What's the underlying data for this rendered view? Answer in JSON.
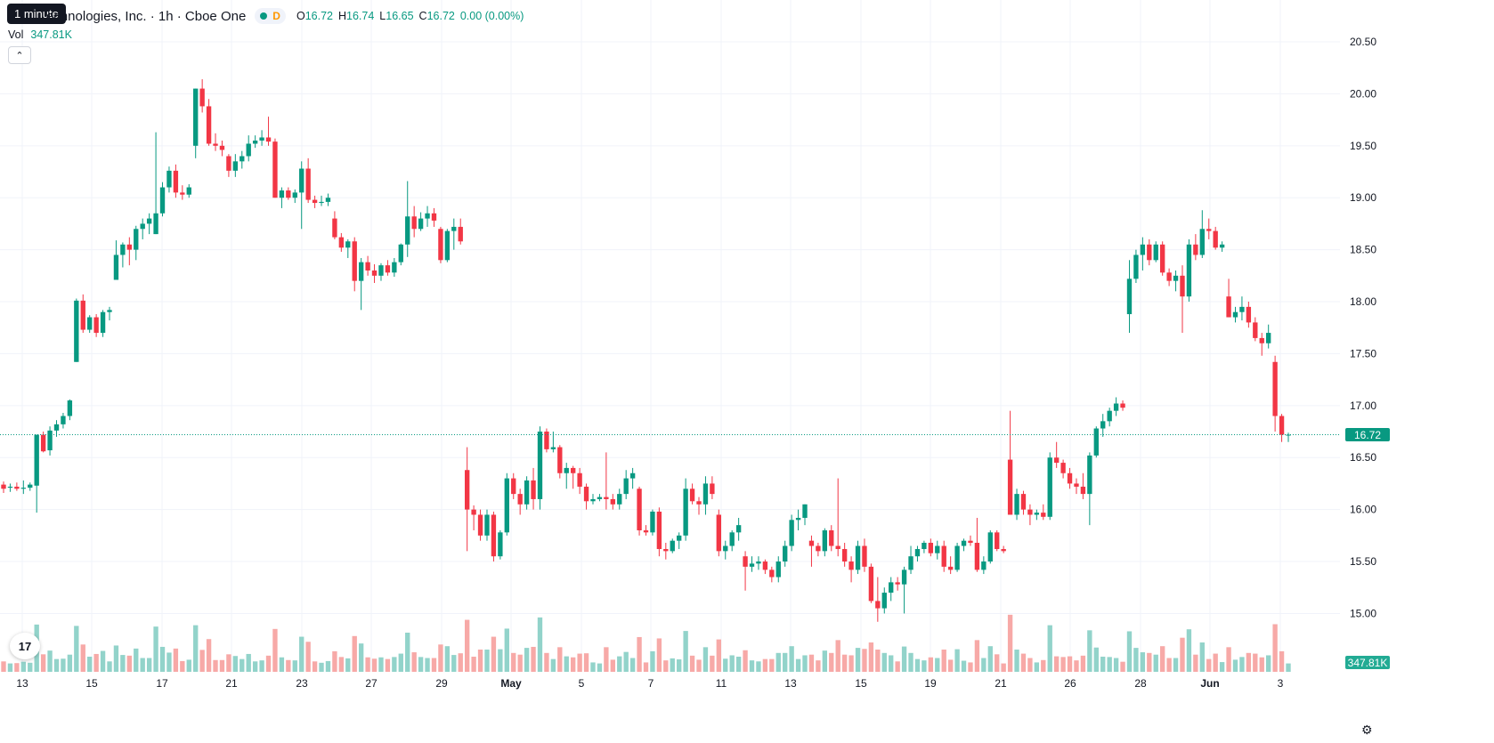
{
  "header": {
    "tooltip": "1 minute",
    "title": "echnologies, Inc. · 1h · Cboe One",
    "status_badge": "D",
    "ohlc": {
      "o_label": "O",
      "o": "16.72",
      "h_label": "H",
      "h": "16.74",
      "l_label": "L",
      "l": "16.65",
      "c_label": "C",
      "c": "16.72",
      "change": "0.00 (0.00%)"
    },
    "vol_label": "Vol",
    "vol_value": "347.81K",
    "collapse_icon": "chevron-up-icon"
  },
  "footer": {
    "logo_text": "17",
    "settings_icon": "gear-icon"
  },
  "badges": {
    "last_price": "16.72",
    "volume": "347.81K"
  },
  "colors": {
    "up": "#089981",
    "down": "#f23645",
    "vol_up": "#92d3ca",
    "vol_down": "#f7a9a7",
    "grid": "#f0f3fa"
  },
  "chart_data": {
    "type": "candlestick",
    "title": "",
    "y_axis": {
      "ticks": [
        "20.50",
        "20.00",
        "19.50",
        "19.00",
        "18.50",
        "18.00",
        "17.50",
        "17.00",
        "16.50",
        "16.00",
        "15.50",
        "15.00"
      ],
      "range": [
        14.55,
        20.62
      ],
      "position": "right"
    },
    "x_axis": {
      "ticks": [
        "13",
        "15",
        "17",
        "21",
        "23",
        "27",
        "29",
        "May",
        "5",
        "7",
        "11",
        "13",
        "15",
        "19",
        "21",
        "26",
        "28",
        "Jun",
        "3"
      ]
    },
    "last_price": 16.72,
    "last_volume": "347.81K",
    "grid": true,
    "ohlc_series": [
      [
        16.24,
        16.27,
        16.16,
        16.2
      ],
      [
        16.21,
        16.25,
        16.17,
        16.22
      ],
      [
        16.22,
        16.26,
        16.18,
        16.2
      ],
      [
        16.2,
        16.28,
        16.15,
        16.21
      ],
      [
        16.21,
        16.26,
        16.18,
        16.24
      ],
      [
        16.23,
        16.72,
        15.97,
        16.72
      ],
      [
        16.72,
        16.75,
        16.55,
        16.56
      ],
      [
        16.57,
        16.8,
        16.52,
        16.76
      ],
      [
        16.76,
        16.86,
        16.7,
        16.82
      ],
      [
        16.82,
        16.93,
        16.78,
        16.9
      ],
      [
        16.9,
        17.06,
        16.86,
        17.05
      ],
      [
        17.42,
        18.03,
        17.42,
        18.01
      ],
      [
        18.01,
        18.07,
        17.7,
        17.73
      ],
      [
        17.73,
        17.87,
        17.7,
        17.85
      ],
      [
        17.85,
        17.88,
        17.66,
        17.7
      ],
      [
        17.7,
        17.92,
        17.66,
        17.9
      ],
      [
        17.9,
        17.95,
        17.82,
        17.92
      ],
      [
        18.21,
        18.59,
        18.21,
        18.45
      ],
      [
        18.45,
        18.57,
        18.33,
        18.55
      ],
      [
        18.55,
        18.62,
        18.35,
        18.5
      ],
      [
        18.5,
        18.73,
        18.4,
        18.7
      ],
      [
        18.7,
        18.8,
        18.6,
        18.75
      ],
      [
        18.75,
        18.85,
        18.65,
        18.8
      ],
      [
        18.65,
        19.63,
        18.65,
        18.85
      ],
      [
        18.85,
        19.15,
        18.82,
        19.1
      ],
      [
        19.1,
        19.3,
        19.05,
        19.26
      ],
      [
        19.26,
        19.32,
        19.0,
        19.05
      ],
      [
        19.05,
        19.12,
        18.98,
        19.03
      ],
      [
        19.03,
        19.13,
        19.0,
        19.1
      ],
      [
        19.5,
        20.05,
        19.38,
        20.05
      ],
      [
        20.05,
        20.14,
        19.82,
        19.88
      ],
      [
        19.88,
        19.95,
        19.5,
        19.52
      ],
      [
        19.52,
        19.62,
        19.45,
        19.5
      ],
      [
        19.5,
        19.55,
        19.4,
        19.46
      ],
      [
        19.4,
        19.42,
        19.2,
        19.26
      ],
      [
        19.26,
        19.42,
        19.2,
        19.35
      ],
      [
        19.35,
        19.45,
        19.28,
        19.4
      ],
      [
        19.4,
        19.6,
        19.35,
        19.52
      ],
      [
        19.52,
        19.6,
        19.48,
        19.55
      ],
      [
        19.55,
        19.65,
        19.5,
        19.58
      ],
      [
        19.58,
        19.78,
        19.5,
        19.54
      ],
      [
        19.54,
        19.57,
        19.0,
        19.0
      ],
      [
        19.0,
        19.1,
        18.9,
        19.07
      ],
      [
        19.07,
        19.1,
        18.98,
        19.0
      ],
      [
        19.0,
        19.08,
        18.95,
        19.05
      ],
      [
        19.05,
        19.35,
        18.7,
        19.28
      ],
      [
        19.28,
        19.38,
        18.95,
        18.98
      ],
      [
        18.98,
        19.02,
        18.9,
        18.95
      ],
      [
        18.95,
        19.02,
        18.92,
        18.96
      ],
      [
        18.96,
        19.04,
        18.92,
        19.0
      ],
      [
        18.8,
        18.87,
        18.6,
        18.62
      ],
      [
        18.62,
        18.66,
        18.48,
        18.52
      ],
      [
        18.52,
        18.6,
        18.42,
        18.58
      ],
      [
        18.58,
        18.62,
        18.1,
        18.2
      ],
      [
        18.2,
        18.42,
        17.92,
        18.38
      ],
      [
        18.38,
        18.44,
        18.25,
        18.3
      ],
      [
        18.3,
        18.36,
        18.18,
        18.25
      ],
      [
        18.25,
        18.37,
        18.2,
        18.35
      ],
      [
        18.35,
        18.4,
        18.25,
        18.28
      ],
      [
        18.28,
        18.42,
        18.24,
        18.38
      ],
      [
        18.38,
        18.56,
        18.35,
        18.55
      ],
      [
        18.55,
        19.16,
        18.43,
        18.82
      ],
      [
        18.82,
        18.92,
        18.62,
        18.7
      ],
      [
        18.7,
        18.86,
        18.68,
        18.8
      ],
      [
        18.8,
        18.92,
        18.72,
        18.85
      ],
      [
        18.85,
        18.9,
        18.72,
        18.78
      ],
      [
        18.7,
        18.72,
        18.37,
        18.4
      ],
      [
        18.4,
        18.7,
        18.38,
        18.68
      ],
      [
        18.68,
        18.8,
        18.5,
        18.72
      ],
      [
        18.72,
        18.8,
        18.55,
        18.58
      ],
      [
        16.38,
        16.6,
        15.6,
        16.0
      ],
      [
        16.0,
        16.04,
        15.8,
        15.95
      ],
      [
        15.95,
        16.0,
        15.7,
        15.75
      ],
      [
        15.75,
        16.0,
        15.7,
        15.95
      ],
      [
        15.95,
        15.98,
        15.5,
        15.55
      ],
      [
        15.55,
        15.8,
        15.52,
        15.78
      ],
      [
        15.78,
        16.35,
        15.75,
        16.3
      ],
      [
        16.3,
        16.35,
        16.1,
        16.15
      ],
      [
        16.15,
        16.2,
        15.95,
        16.05
      ],
      [
        16.05,
        16.32,
        16.0,
        16.28
      ],
      [
        16.28,
        16.4,
        16.0,
        16.1
      ],
      [
        16.1,
        16.8,
        16.0,
        16.75
      ],
      [
        16.75,
        16.78,
        16.55,
        16.58
      ],
      [
        16.58,
        16.75,
        16.55,
        16.6
      ],
      [
        16.6,
        16.62,
        16.3,
        16.35
      ],
      [
        16.35,
        16.45,
        16.2,
        16.4
      ],
      [
        16.4,
        16.42,
        16.2,
        16.35
      ],
      [
        16.35,
        16.4,
        16.15,
        16.22
      ],
      [
        16.22,
        16.25,
        16.0,
        16.08
      ],
      [
        16.08,
        16.15,
        16.05,
        16.1
      ],
      [
        16.1,
        16.15,
        16.08,
        16.12
      ],
      [
        16.12,
        16.55,
        16.0,
        16.1
      ],
      [
        16.1,
        16.15,
        16.0,
        16.05
      ],
      [
        16.05,
        16.2,
        16.0,
        16.15
      ],
      [
        16.15,
        16.38,
        16.1,
        16.3
      ],
      [
        16.3,
        16.4,
        16.2,
        16.35
      ],
      [
        16.2,
        16.22,
        15.75,
        15.8
      ],
      [
        15.8,
        15.85,
        15.75,
        15.78
      ],
      [
        15.78,
        16.0,
        15.75,
        15.98
      ],
      [
        15.98,
        16.02,
        15.55,
        15.62
      ],
      [
        15.62,
        15.68,
        15.52,
        15.6
      ],
      [
        15.6,
        15.72,
        15.58,
        15.7
      ],
      [
        15.7,
        15.78,
        15.62,
        15.75
      ],
      [
        15.75,
        16.3,
        15.7,
        16.2
      ],
      [
        16.2,
        16.25,
        16.05,
        16.08
      ],
      [
        16.08,
        16.12,
        15.95,
        16.05
      ],
      [
        16.05,
        16.32,
        15.95,
        16.25
      ],
      [
        16.25,
        16.32,
        16.1,
        16.15
      ],
      [
        15.95,
        16.0,
        15.55,
        15.6
      ],
      [
        15.6,
        15.7,
        15.52,
        15.65
      ],
      [
        15.65,
        15.8,
        15.6,
        15.78
      ],
      [
        15.78,
        15.92,
        15.7,
        15.85
      ],
      [
        15.55,
        15.6,
        15.22,
        15.45
      ],
      [
        15.45,
        15.55,
        15.4,
        15.48
      ],
      [
        15.48,
        15.55,
        15.42,
        15.5
      ],
      [
        15.5,
        15.52,
        15.38,
        15.42
      ],
      [
        15.42,
        15.45,
        15.3,
        15.35
      ],
      [
        15.35,
        15.55,
        15.3,
        15.5
      ],
      [
        15.5,
        15.7,
        15.45,
        15.65
      ],
      [
        15.65,
        15.95,
        15.6,
        15.9
      ],
      [
        15.9,
        16.0,
        15.8,
        15.92
      ],
      [
        15.92,
        16.05,
        15.85,
        16.05
      ],
      [
        15.7,
        15.75,
        15.45,
        15.65
      ],
      [
        15.65,
        15.68,
        15.55,
        15.6
      ],
      [
        15.6,
        15.82,
        15.55,
        15.8
      ],
      [
        15.8,
        15.85,
        15.6,
        15.65
      ],
      [
        15.65,
        16.3,
        15.55,
        15.62
      ],
      [
        15.62,
        15.68,
        15.45,
        15.5
      ],
      [
        15.5,
        15.55,
        15.3,
        15.42
      ],
      [
        15.42,
        15.7,
        15.38,
        15.65
      ],
      [
        15.65,
        15.72,
        15.4,
        15.45
      ],
      [
        15.45,
        15.48,
        15.1,
        15.12
      ],
      [
        15.12,
        15.35,
        14.92,
        15.05
      ],
      [
        15.05,
        15.25,
        15.0,
        15.2
      ],
      [
        15.2,
        15.35,
        15.12,
        15.3
      ],
      [
        15.3,
        15.35,
        15.22,
        15.28
      ],
      [
        15.28,
        15.45,
        15.0,
        15.42
      ],
      [
        15.42,
        15.65,
        15.38,
        15.55
      ],
      [
        15.55,
        15.65,
        15.5,
        15.62
      ],
      [
        15.62,
        15.7,
        15.58,
        15.68
      ],
      [
        15.68,
        15.72,
        15.55,
        15.58
      ],
      [
        15.58,
        15.7,
        15.52,
        15.65
      ],
      [
        15.65,
        15.7,
        15.4,
        15.45
      ],
      [
        15.45,
        15.55,
        15.38,
        15.42
      ],
      [
        15.42,
        15.68,
        15.4,
        15.65
      ],
      [
        15.65,
        15.72,
        15.6,
        15.7
      ],
      [
        15.7,
        15.75,
        15.65,
        15.68
      ],
      [
        15.68,
        15.92,
        15.4,
        15.42
      ],
      [
        15.42,
        15.55,
        15.38,
        15.5
      ],
      [
        15.5,
        15.8,
        15.48,
        15.78
      ],
      [
        15.78,
        15.8,
        15.6,
        15.62
      ],
      [
        15.62,
        15.65,
        15.58,
        15.6
      ],
      [
        16.48,
        16.95,
        15.95,
        15.95
      ],
      [
        15.95,
        16.2,
        15.9,
        16.15
      ],
      [
        16.15,
        16.18,
        15.95,
        16.0
      ],
      [
        16.0,
        16.05,
        15.85,
        15.95
      ],
      [
        15.95,
        16.0,
        15.9,
        15.97
      ],
      [
        15.97,
        16.05,
        15.9,
        15.93
      ],
      [
        15.93,
        16.55,
        15.9,
        16.5
      ],
      [
        16.5,
        16.65,
        16.4,
        16.45
      ],
      [
        16.45,
        16.48,
        16.3,
        16.35
      ],
      [
        16.35,
        16.4,
        16.2,
        16.25
      ],
      [
        16.25,
        16.3,
        16.15,
        16.22
      ],
      [
        16.22,
        16.35,
        16.1,
        16.15
      ],
      [
        16.15,
        16.55,
        15.85,
        16.52
      ],
      [
        16.52,
        16.8,
        16.5,
        16.78
      ],
      [
        16.78,
        16.92,
        16.7,
        16.85
      ],
      [
        16.85,
        16.98,
        16.8,
        16.95
      ],
      [
        16.95,
        17.08,
        16.9,
        17.02
      ],
      [
        17.02,
        17.05,
        16.95,
        16.98
      ],
      [
        17.88,
        18.4,
        17.7,
        18.22
      ],
      [
        18.22,
        18.5,
        18.18,
        18.45
      ],
      [
        18.45,
        18.62,
        18.3,
        18.55
      ],
      [
        18.55,
        18.6,
        18.35,
        18.4
      ],
      [
        18.4,
        18.58,
        18.38,
        18.55
      ],
      [
        18.55,
        18.58,
        18.25,
        18.28
      ],
      [
        18.28,
        18.32,
        18.15,
        18.2
      ],
      [
        18.2,
        18.3,
        18.1,
        18.25
      ],
      [
        18.25,
        18.35,
        17.7,
        18.05
      ],
      [
        18.05,
        18.6,
        18.0,
        18.55
      ],
      [
        18.55,
        18.65,
        18.4,
        18.45
      ],
      [
        18.45,
        18.88,
        18.42,
        18.7
      ],
      [
        18.7,
        18.8,
        18.6,
        18.68
      ],
      [
        18.68,
        18.72,
        18.5,
        18.52
      ],
      [
        18.52,
        18.58,
        18.48,
        18.55
      ],
      [
        18.05,
        18.22,
        17.85,
        17.85
      ],
      [
        17.85,
        17.95,
        17.8,
        17.9
      ],
      [
        17.9,
        18.05,
        17.82,
        17.95
      ],
      [
        17.95,
        18.0,
        17.75,
        17.8
      ],
      [
        17.8,
        17.85,
        17.62,
        17.65
      ],
      [
        17.65,
        17.7,
        17.48,
        17.6
      ],
      [
        17.6,
        17.78,
        17.55,
        17.7
      ],
      [
        17.42,
        17.48,
        16.75,
        16.9
      ],
      [
        16.9,
        16.92,
        16.65,
        16.72
      ],
      [
        16.72,
        16.74,
        16.65,
        16.72
      ]
    ]
  }
}
